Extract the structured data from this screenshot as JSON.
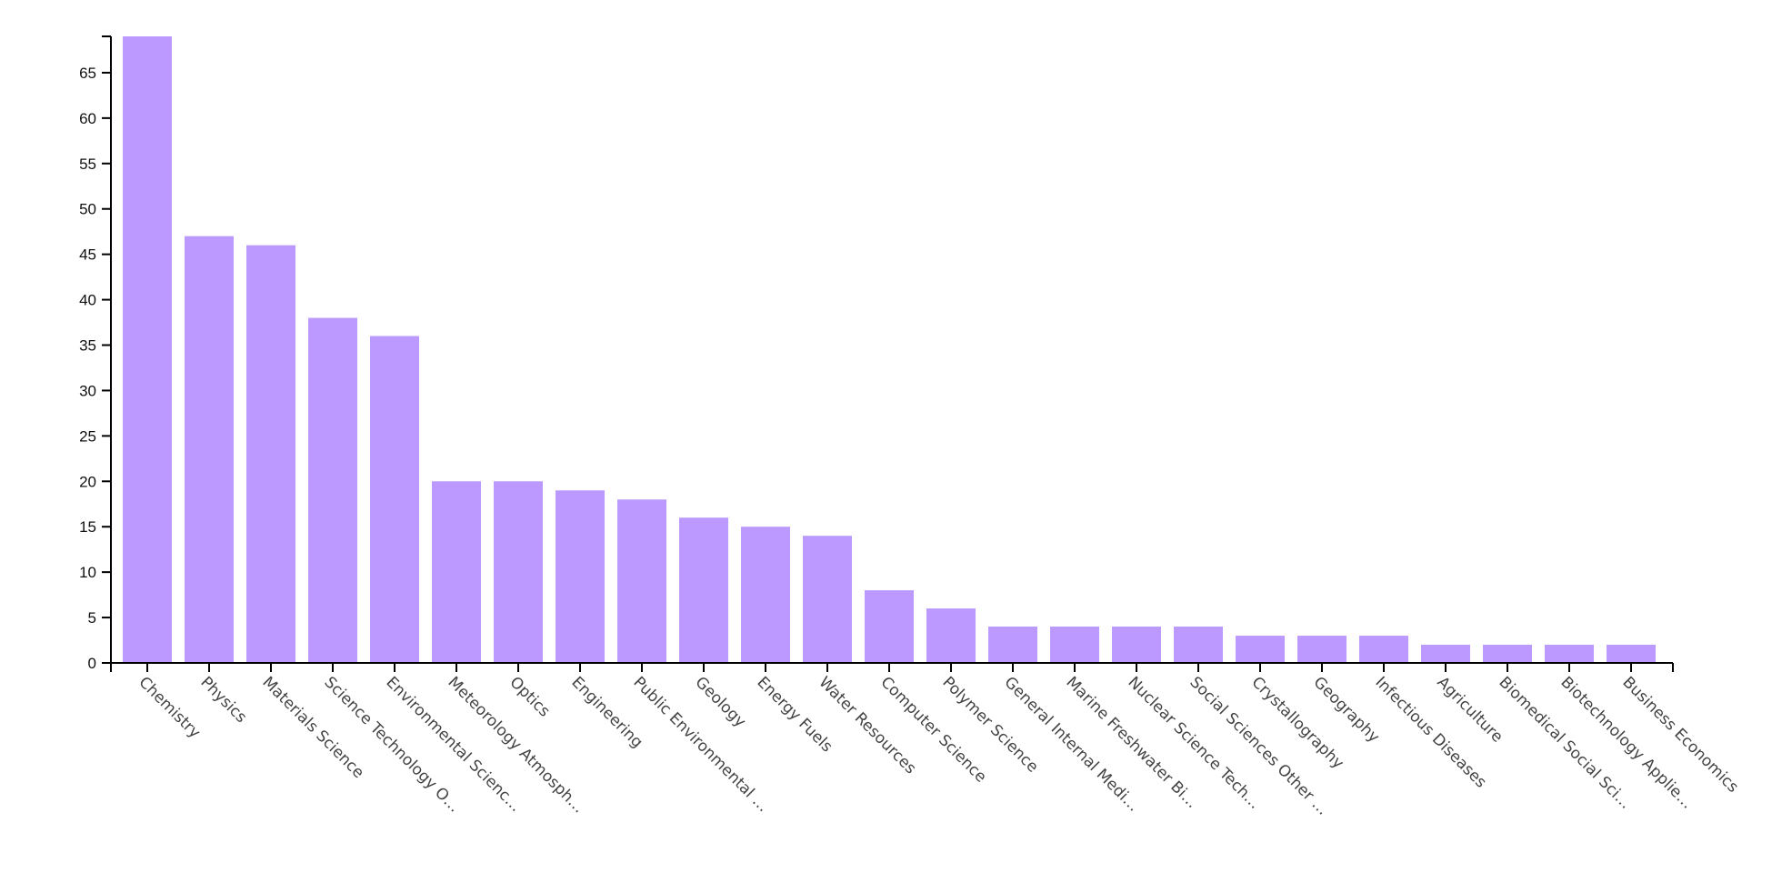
{
  "chart_data": {
    "type": "bar",
    "title": "",
    "xlabel": "",
    "ylabel": "",
    "ylim": [
      0,
      69
    ],
    "yticks": [
      0,
      5,
      10,
      15,
      20,
      25,
      30,
      35,
      40,
      45,
      50,
      55,
      60,
      65
    ],
    "grid": false,
    "legend": "none",
    "bar_color": "#bb99ff",
    "categories": [
      "Chemistry",
      "Physics",
      "Materials Science",
      "Science Technology O…",
      "Environmental Scienc…",
      "Meteorology Atmosph…",
      "Optics",
      "Engineering",
      "Public Environmental …",
      "Geology",
      "Energy Fuels",
      "Water Resources",
      "Computer Science",
      "Polymer Science",
      "General Internal Medi…",
      "Marine Freshwater Bi…",
      "Nuclear Science Tech…",
      "Social Sciences Other …",
      "Crystallography",
      "Geography",
      "Infectious Diseases",
      "Agriculture",
      "Biomedical Social Sci…",
      "Biotechnology Applie…",
      "Business Economics"
    ],
    "values": [
      69,
      47,
      46,
      38,
      36,
      20,
      20,
      19,
      18,
      16,
      15,
      14,
      8,
      6,
      4,
      4,
      4,
      4,
      3,
      3,
      3,
      2,
      2,
      2,
      2
    ]
  }
}
